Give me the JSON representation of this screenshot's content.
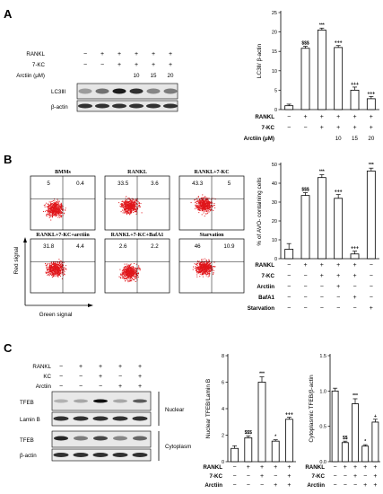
{
  "panels": {
    "A": {
      "letter": "A",
      "blot_conditions": [
        "RANKL",
        "7-KC",
        "Arctiin (μM)"
      ],
      "blot_signs": [
        [
          "−",
          "+",
          "+",
          "+",
          "+",
          "+"
        ],
        [
          "−",
          "−",
          "+",
          "+",
          "+",
          "+"
        ],
        [
          "",
          "",
          "",
          "10",
          "15",
          "20"
        ]
      ],
      "blot_bands": [
        "LC3ⅡⅠ",
        "β-actin"
      ],
      "lc3_intensity": [
        0.35,
        0.55,
        0.95,
        0.85,
        0.45,
        0.5
      ]
    },
    "B": {
      "letter": "B",
      "facs": [
        {
          "title": "BMMs",
          "ul": "5",
          "ur": "0.4"
        },
        {
          "title": "RANKL",
          "ul": "33.5",
          "ur": "3.6"
        },
        {
          "title": "RANKL+7-KC",
          "ul": "43.3",
          "ur": "5"
        },
        {
          "title": "RANKL+7-KC+arctiin",
          "ul": "31.8",
          "ur": "4.4"
        },
        {
          "title": "RANKL+7-KC+BafA1",
          "ul": "2.6",
          "ur": "2.2"
        },
        {
          "title": "Starvation",
          "ul": "46",
          "ur": "10.9"
        }
      ],
      "red_label": "Red signal",
      "green_label": "Green signal"
    },
    "C": {
      "letter": "C",
      "blot_conditions": [
        "RANKL",
        "KC",
        "Arctiin"
      ],
      "blot_signs": [
        [
          "−",
          "+",
          "+",
          "+",
          "+"
        ],
        [
          "−",
          "−",
          "+",
          "−",
          "+"
        ],
        [
          "−",
          "−",
          "−",
          "+",
          "+"
        ]
      ],
      "nuclear_bands": [
        "TFEB",
        "Lamin B"
      ],
      "cyto_bands": [
        "TFEB",
        "β-actin"
      ],
      "nuclear_label": "Nuclear",
      "cyto_label": "Cytoplasm"
    }
  },
  "chart_data": [
    {
      "type": "bar",
      "panel": "A",
      "ylabel": "LC3Ⅱ/ β-actin",
      "ylim": [
        0,
        25
      ],
      "yticks": [
        0,
        5,
        10,
        15,
        20,
        25
      ],
      "values": [
        1,
        15.8,
        20.5,
        16,
        5,
        2.8
      ],
      "errors": [
        0.4,
        0.5,
        0.5,
        0.5,
        0.8,
        0.6
      ],
      "significance": [
        "",
        "$$$",
        "***",
        "+++",
        "+++",
        "+++"
      ],
      "row_labels": [
        "RANKL",
        "7-KC",
        "Arctiin (μM)"
      ],
      "rows": [
        [
          "−",
          "+",
          "+",
          "+",
          "+",
          "+"
        ],
        [
          "−",
          "−",
          "+",
          "+",
          "+",
          "+"
        ],
        [
          "",
          "",
          "",
          "10",
          "15",
          "20"
        ]
      ]
    },
    {
      "type": "bar",
      "panel": "B",
      "ylabel": "% of AVO- containing cells",
      "ylim": [
        0,
        50
      ],
      "yticks": [
        0,
        10,
        20,
        30,
        40,
        50
      ],
      "values": [
        5,
        33.5,
        43,
        32,
        2.5,
        46.5
      ],
      "errors": [
        3,
        1.5,
        1.5,
        2,
        1.5,
        1.5
      ],
      "significance": [
        "",
        "$$$",
        "***",
        "+++",
        "+++",
        "***"
      ],
      "row_labels": [
        "RANKL",
        "7-KC",
        "Arctiin",
        "BafA1",
        "Starvation"
      ],
      "rows": [
        [
          "−",
          "+",
          "+",
          "+",
          "+",
          "−"
        ],
        [
          "−",
          "−",
          "+",
          "+",
          "+",
          "−"
        ],
        [
          "−",
          "−",
          "−",
          "+",
          "−",
          "−"
        ],
        [
          "−",
          "−",
          "−",
          "−",
          "+",
          "−"
        ],
        [
          "−",
          "−",
          "−",
          "−",
          "−",
          "+"
        ]
      ]
    },
    {
      "type": "bar",
      "panel": "C",
      "ylabel": "Nuclear TFEB/Lamin B",
      "ylim": [
        0,
        8
      ],
      "yticks": [
        0,
        2,
        4,
        6,
        8
      ],
      "values": [
        1,
        1.8,
        6,
        1.55,
        3.2
      ],
      "errors": [
        0.2,
        0.15,
        0.4,
        0.1,
        0.15
      ],
      "significance": [
        "",
        "$$$",
        "***",
        "*",
        "+++"
      ],
      "row_labels": [
        "RANKL",
        "7-KC",
        "Arctiin"
      ],
      "rows": [
        [
          "−",
          "+",
          "+",
          "+",
          "+"
        ],
        [
          "−",
          "−",
          "+",
          "−",
          "+"
        ],
        [
          "−",
          "−",
          "−",
          "+",
          "+"
        ]
      ]
    },
    {
      "type": "bar",
      "panel": "C",
      "ylabel": "Cytoplasmic TFEB/β-actin",
      "ylim": [
        0,
        1.5
      ],
      "yticks": [
        0.0,
        0.5,
        1.0,
        1.5
      ],
      "tick_labels": [
        "0.0",
        "0.5",
        "1.0",
        "1.5"
      ],
      "values": [
        1.0,
        0.27,
        0.82,
        0.22,
        0.56
      ],
      "errors": [
        0.04,
        0.02,
        0.07,
        0.02,
        0.04
      ],
      "significance": [
        "",
        "$$",
        "***",
        "*",
        "+"
      ],
      "row_labels": [
        "RANKL",
        "7-KC",
        "Arctiin"
      ],
      "rows": [
        [
          "−",
          "+",
          "+",
          "+",
          "+"
        ],
        [
          "−",
          "−",
          "+",
          "−",
          "+"
        ],
        [
          "−",
          "−",
          "−",
          "+",
          "+"
        ]
      ]
    }
  ]
}
